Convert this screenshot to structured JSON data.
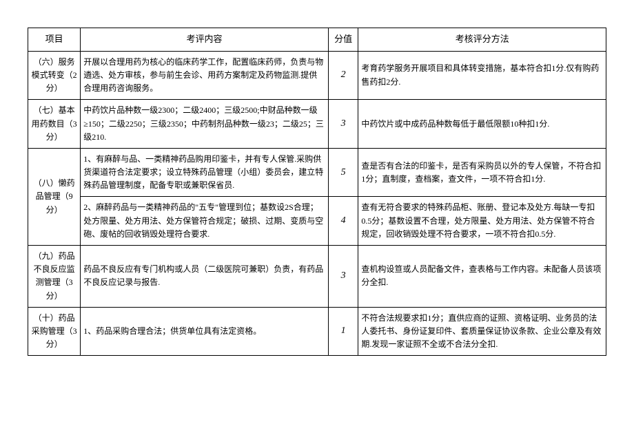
{
  "headers": {
    "project": "项目",
    "content": "考评内容",
    "score": "分值",
    "method": "考核评分方法"
  },
  "rows": [
    {
      "project": "（六）服务模式转变（2分）",
      "content": "开展以合理用药为核心的临床药学工作，配置临床药师，负责与物遴选、处方审核，参与前生会诊、用药方案制定及药物监测.提供合理用药咨询服务。",
      "score": "2",
      "method": "考育药学服务开展项目和具体转变措施，基本符合扣1分.仅有购药售药扣2分."
    },
    {
      "project": "（七）基本用药数目（3分）",
      "content": "中药饮片品种数一级2300；二级2400；三级2500;中财品种数一级≥150；二级2250；三级2350；中药制剂品种数一级23；二级25；三级210.",
      "score": "3",
      "method": "中药饮片或中成药品种数每低于最低限额10种扣1分."
    },
    {
      "project": "（八）懒药品管理（9分）",
      "content_a": "1、有麻醉与品、一类精神药品购用印鉴卡，并有专人保管.采购供货渠道符合法定要求；设立特殊药品管理（小组）委员会，建立特殊药品管理制度，配备专职或兼职保省员.",
      "score_a": "5",
      "method_a": "查是否有合法的印鉴卡，是否有采购员以外的专人保管，不符合扣1分；直制度，查档案，查文件，一项不符合扣1分.",
      "content_b": "2、麻醉药品与一类精神药品的\"五专\"管理到位；基数设2S合理；处方限量、处方用法、处方保管符合规定；破损、过期、变质与空砲、废帖的回收销毁处理符合要求.",
      "score_b": "4",
      "method_b": "查有无符合要求的特殊药品柜、账册、登记本及处方.每缺一专扣0.5分；基数设置不合理，处方限量、处方用法、处方保管不符合规定，回收销毁处理不符合要求，一项不符合扣0.5分."
    },
    {
      "project": "（九）药品不良反应监测管理（3分）",
      "content": "药品不良反应有专门机构或人员（二级医院可兼职）负责，有药品不良反应记录与报告.",
      "score": "3",
      "method": "查机构设笪或人员配备文件，查表格与工作内容。未配备人员该项分全扣."
    },
    {
      "project": "（十）药品采购管理（3分）",
      "content": "1、药品采购合理合法；供货单位具有法定资格。",
      "score": "1",
      "method": "不符合法规要求扣1分；直供应商的证照、资格证明、业务员的法人委托书、身份证复印件、套质量保证协议条款、企业公章及有效期.发现一家证照不全或不合法分全扣."
    }
  ],
  "style": {
    "border_color": "#000000",
    "background": "#ffffff",
    "font_size_body": 12,
    "font_size_header": 13
  }
}
